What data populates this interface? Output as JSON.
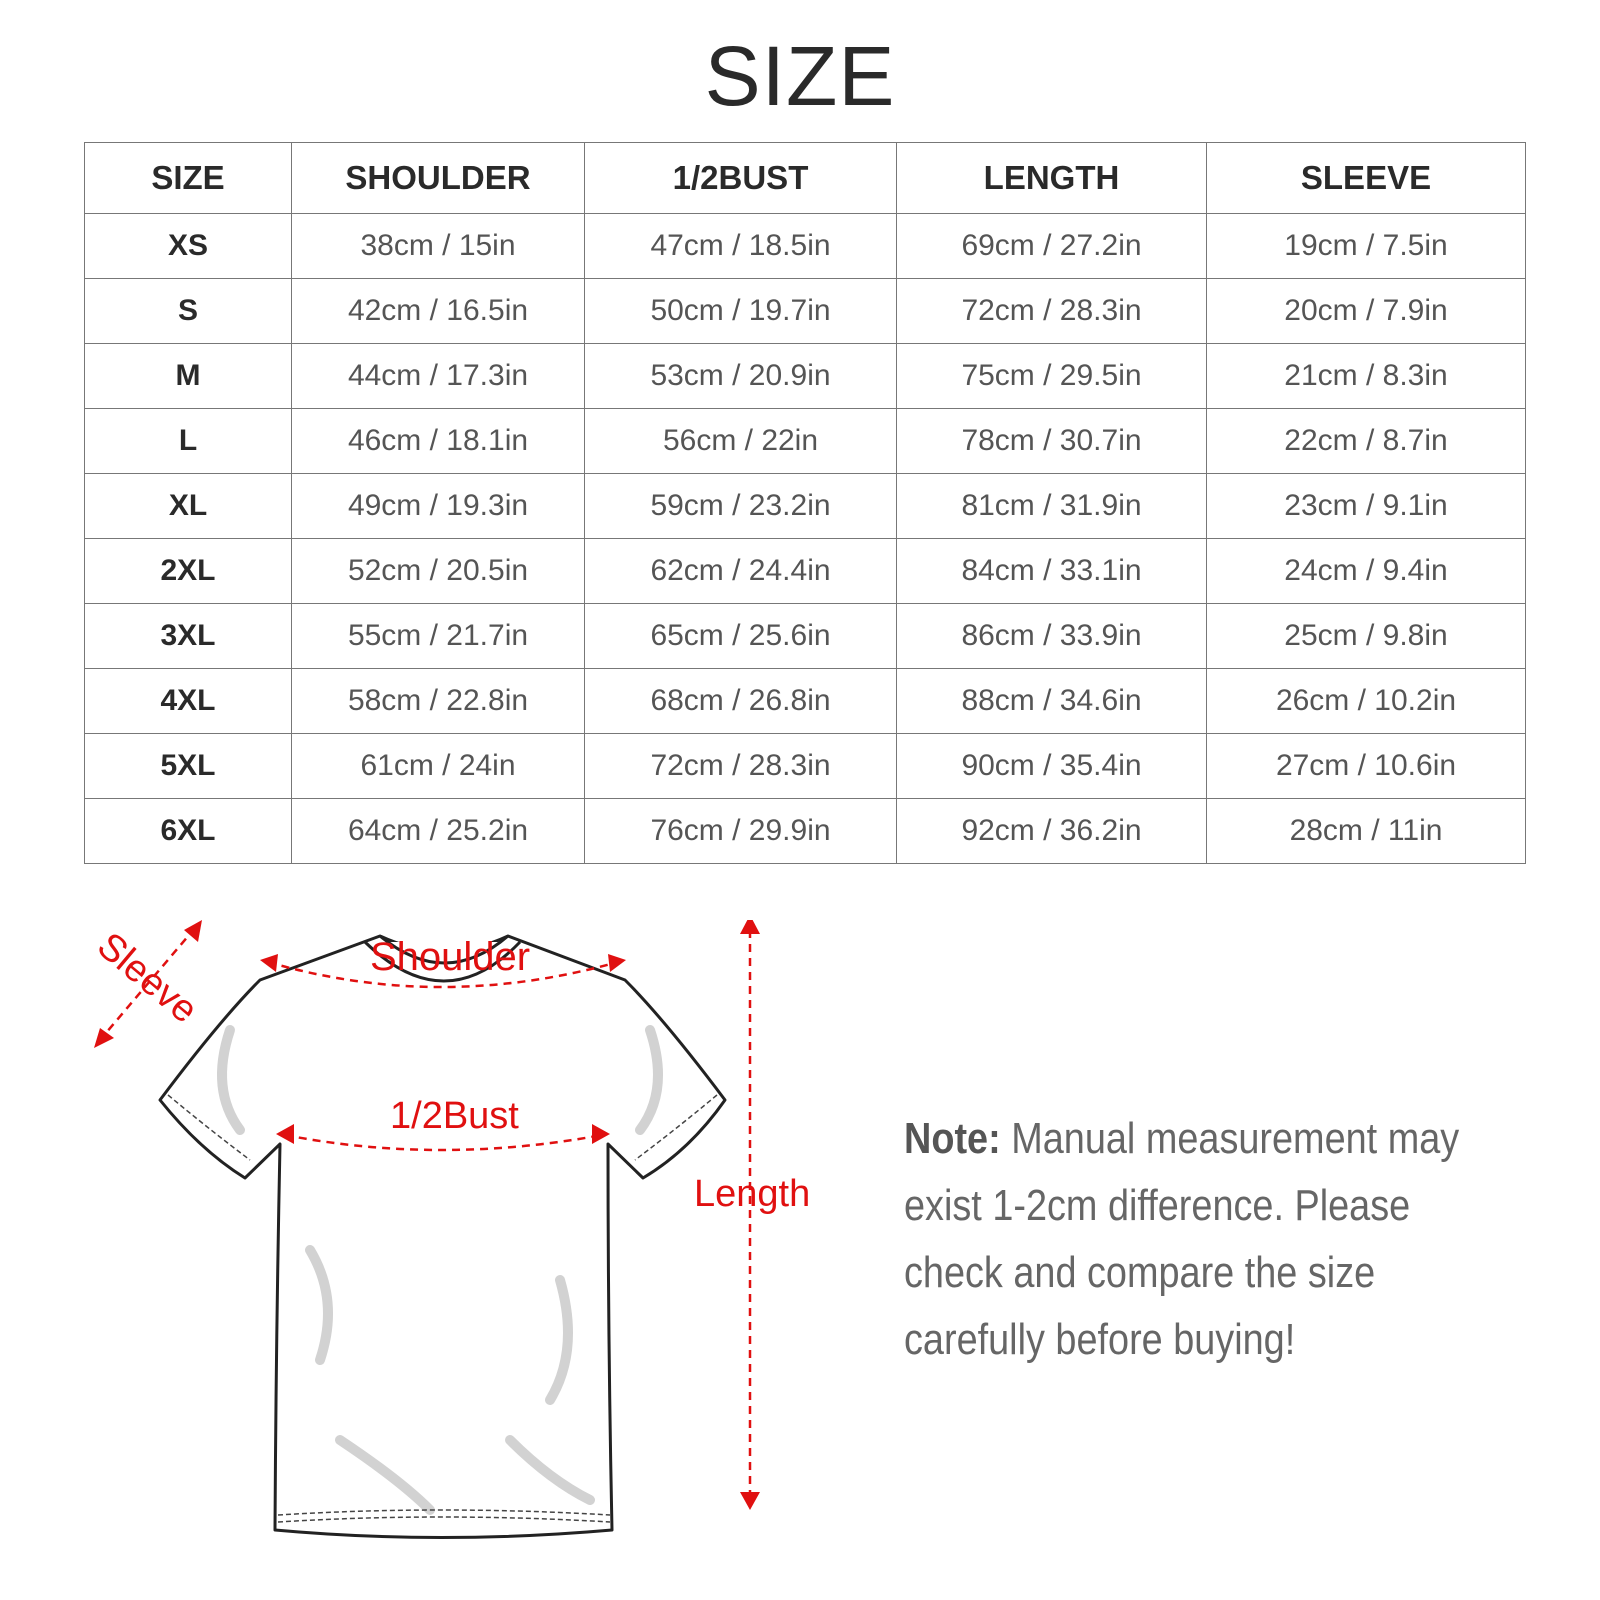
{
  "title": "SIZE",
  "table": {
    "headers": [
      "SIZE",
      "SHOULDER",
      "1/2BUST",
      "LENGTH",
      "SLEEVE"
    ],
    "rows": [
      [
        "XS",
        "38cm / 15in",
        "47cm / 18.5in",
        "69cm / 27.2in",
        "19cm / 7.5in"
      ],
      [
        "S",
        "42cm / 16.5in",
        "50cm / 19.7in",
        "72cm / 28.3in",
        "20cm / 7.9in"
      ],
      [
        "M",
        "44cm / 17.3in",
        "53cm / 20.9in",
        "75cm / 29.5in",
        "21cm / 8.3in"
      ],
      [
        "L",
        "46cm / 18.1in",
        "56cm / 22in",
        "78cm / 30.7in",
        "22cm / 8.7in"
      ],
      [
        "XL",
        "49cm / 19.3in",
        "59cm / 23.2in",
        "81cm / 31.9in",
        "23cm / 9.1in"
      ],
      [
        "2XL",
        "52cm / 20.5in",
        "62cm / 24.4in",
        "84cm / 33.1in",
        "24cm / 9.4in"
      ],
      [
        "3XL",
        "55cm / 21.7in",
        "65cm / 25.6in",
        "86cm / 33.9in",
        "25cm / 9.8in"
      ],
      [
        "4XL",
        "58cm / 22.8in",
        "68cm / 26.8in",
        "88cm / 34.6in",
        "26cm / 10.2in"
      ],
      [
        "5XL",
        "61cm / 24in",
        "72cm / 28.3in",
        "90cm / 35.4in",
        "27cm / 10.6in"
      ],
      [
        "6XL",
        "64cm / 25.2in",
        "76cm / 29.9in",
        "92cm / 36.2in",
        "28cm / 11in"
      ]
    ]
  },
  "diagram": {
    "labels": {
      "sleeve": "Sleeve",
      "shoulder": "Shoulder",
      "bust": "1/2Bust",
      "length": "Length"
    },
    "accent_color": "#e01010"
  },
  "note": {
    "label": "Note:",
    "text": " Manual measurement may exist 1-2cm difference. Please check and compare the size carefully before buying!"
  }
}
